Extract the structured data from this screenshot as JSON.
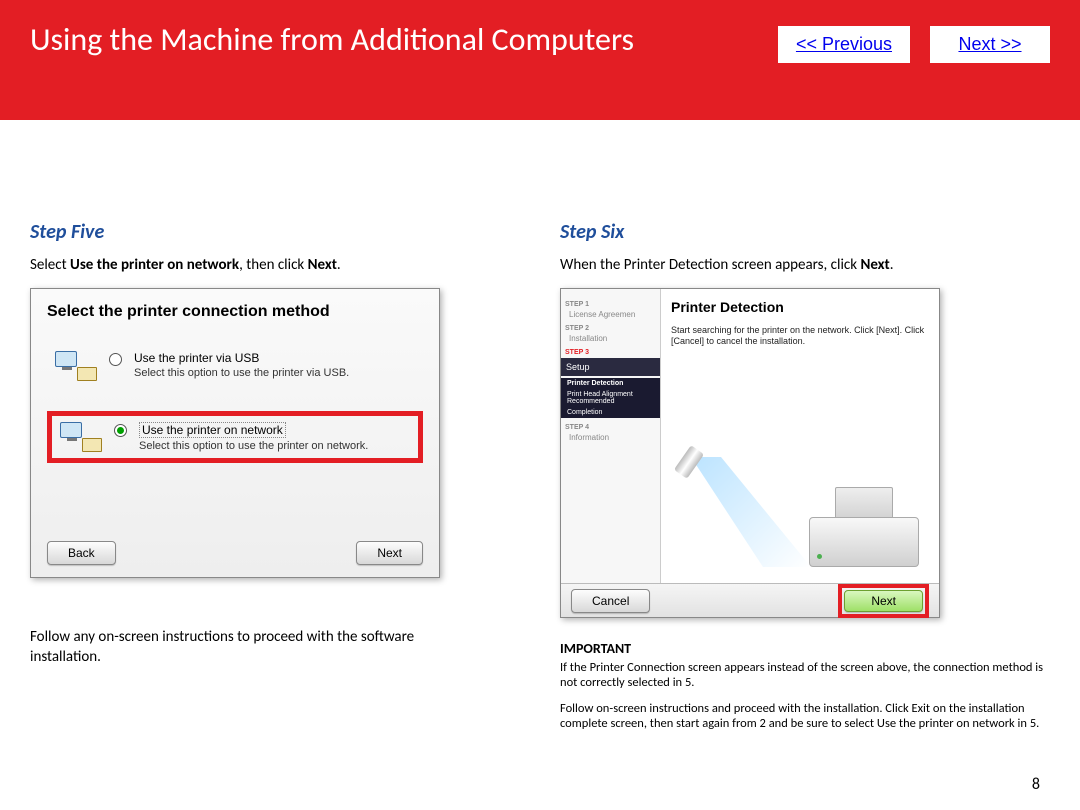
{
  "header": {
    "title": "Using the Machine from Additional Computers",
    "prev_label": "<< Previous",
    "next_label": "Next >>",
    "bg_color": "#e31e24"
  },
  "page_number": "8",
  "step5": {
    "title": "Step Five",
    "desc_pre": "Select ",
    "desc_bold": "Use the printer on network",
    "desc_mid": ", then click ",
    "desc_bold2": "Next",
    "desc_post": ".",
    "dialog_title": "Select the printer connection method",
    "opt1_label": "Use the printer via USB",
    "opt1_sub": "Select this option to use the printer via USB.",
    "opt2_label": "Use the printer on network",
    "opt2_sub": "Select this option to use the printer on network.",
    "back_btn": "Back",
    "next_btn": "Next",
    "follow_text": "Follow any on-screen instructions to proceed with the software installation."
  },
  "step6": {
    "title": "Step Six",
    "desc_pre": "When the Printer Detection screen appears, click ",
    "desc_bold": "Next",
    "desc_post": ".",
    "sidebar": {
      "s1": "STEP 1",
      "s1_item": "License Agreemen",
      "s2": "STEP 2",
      "s2_item": "Installation",
      "s3": "STEP 3",
      "setup": "Setup",
      "sub1": "Printer Detection",
      "sub2": "Print Head Alignment Recommended",
      "sub3": "Completion",
      "s4": "STEP 4",
      "s4_item": "Information"
    },
    "main_title": "Printer Detection",
    "main_text": "Start searching for the printer on the network. Click [Next]. Click [Cancel] to cancel the installation.",
    "cancel_btn": "Cancel",
    "next_btn": "Next",
    "important_hdr": "IMPORTANT",
    "important_p1": "If the Printer Connection screen appears instead of the screen above, the connection method is not correctly selected in 5.",
    "important_p2": "Follow on-screen instructions and proceed with the installation. Click Exit on the installation complete screen, then start again from 2 and be sure to select Use the printer on network in 5."
  },
  "colors": {
    "highlight": "#e31e24",
    "step_title": "#1f4e9b",
    "link": "#0000ee"
  }
}
